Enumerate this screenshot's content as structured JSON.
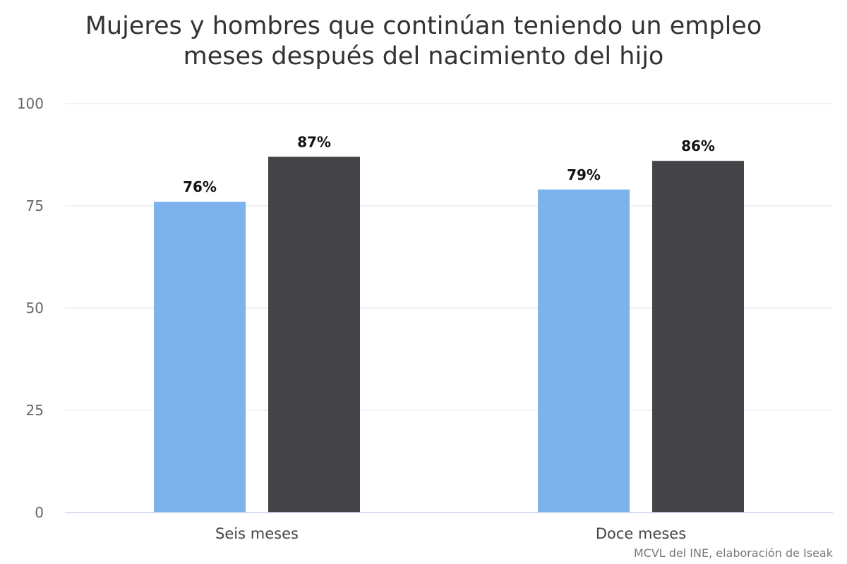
{
  "chart_data": {
    "type": "bar",
    "title_lines": [
      "Mujeres y hombres que continúan teniendo un empleo",
      "meses después del nacimiento del hijo"
    ],
    "categories": [
      "Seis meses",
      "Doce meses"
    ],
    "series": [
      {
        "color": "#7cb3ec",
        "values": [
          76,
          79
        ],
        "labels": [
          "76%",
          "79%"
        ]
      },
      {
        "color": "#434348",
        "values": [
          87,
          86
        ],
        "labels": [
          "87%",
          "86%"
        ]
      }
    ],
    "xlabel": "",
    "ylabel": "",
    "ylim": [
      0,
      100
    ],
    "yticks": [
      0,
      25,
      50,
      75,
      100
    ],
    "grid": true,
    "legend": "none",
    "credit": "MCVL del INE, elaboración de Iseak"
  }
}
